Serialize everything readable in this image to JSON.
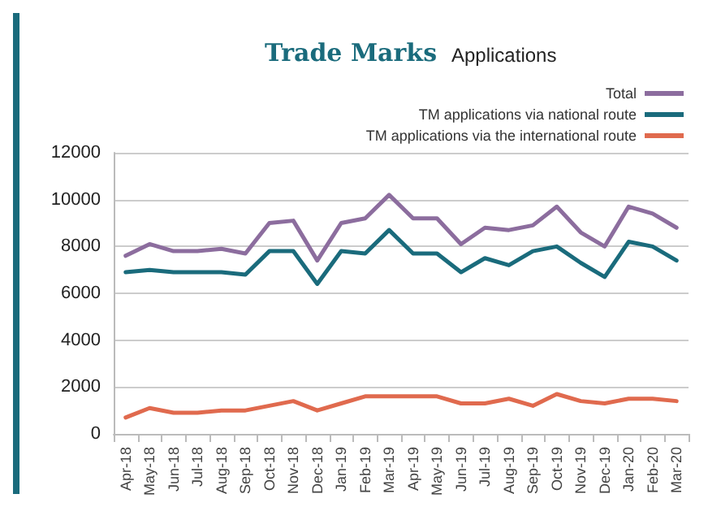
{
  "chart_data": {
    "type": "line",
    "title": "Trade Marks",
    "subtitle": "Applications",
    "categories": [
      "Apr-18",
      "May-18",
      "Jun-18",
      "Jul-18",
      "Aug-18",
      "Sep-18",
      "Oct-18",
      "Nov-18",
      "Dec-18",
      "Jan-19",
      "Feb-19",
      "Mar-19",
      "Apr-19",
      "May-19",
      "Jun-19",
      "Jul-19",
      "Aug-19",
      "Sep-19",
      "Oct-19",
      "Nov-19",
      "Dec-19",
      "Jan-20",
      "Feb-20",
      "Mar-20"
    ],
    "series": [
      {
        "name": "Total",
        "color": "#8c6d9e",
        "values": [
          7600,
          8100,
          7800,
          7800,
          7900,
          7700,
          9000,
          9100,
          7400,
          9000,
          9200,
          10200,
          9200,
          9200,
          8100,
          8800,
          8700,
          8900,
          9700,
          8600,
          8000,
          9700,
          9400,
          8800
        ]
      },
      {
        "name": "TM applications via national route",
        "color": "#1a6b7c",
        "values": [
          6900,
          7000,
          6900,
          6900,
          6900,
          6800,
          7800,
          7800,
          6400,
          7800,
          7700,
          8700,
          7700,
          7700,
          6900,
          7500,
          7200,
          7800,
          8000,
          7300,
          6700,
          8200,
          8000,
          7400
        ]
      },
      {
        "name": "TM applications via the international route",
        "color": "#e06a4e",
        "values": [
          700,
          1100,
          900,
          900,
          1000,
          1000,
          1200,
          1400,
          1000,
          1300,
          1600,
          1600,
          1600,
          1600,
          1300,
          1300,
          1500,
          1200,
          1700,
          1400,
          1300,
          1500,
          1500,
          1400
        ]
      }
    ],
    "ylim": [
      0,
      12000
    ],
    "yticks": [
      0,
      2000,
      4000,
      6000,
      8000,
      10000,
      12000
    ],
    "grid": "y",
    "legend": "top right",
    "marker": "none",
    "line_style": "solid"
  }
}
